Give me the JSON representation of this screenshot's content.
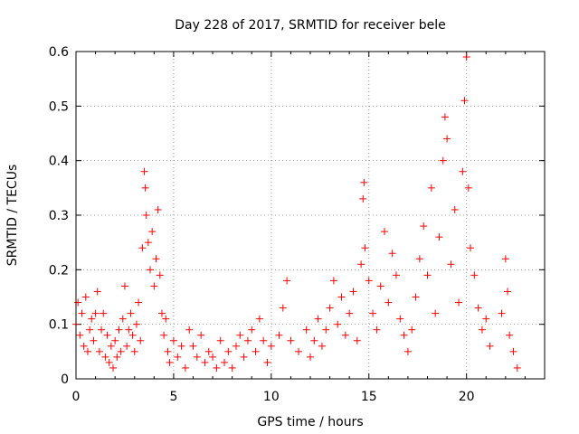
{
  "chart_data": {
    "type": "scatter",
    "title": "Day 228 of 2017, SRMTID for receiver bele",
    "xlabel": "GPS time / hours",
    "ylabel": "SRMTID / TECUs",
    "xlim": [
      0,
      24
    ],
    "ylim": [
      0,
      0.6
    ],
    "x_ticks": [
      "0",
      "5",
      "10",
      "15",
      "20"
    ],
    "y_ticks": [
      "0",
      "0.1",
      "0.2",
      "0.3",
      "0.4",
      "0.5",
      "0.6"
    ],
    "grid": true,
    "marker": "plus",
    "color": "#ff0000",
    "series": [
      {
        "name": "SRMTID",
        "points": [
          [
            0.0,
            0.1
          ],
          [
            0.1,
            0.14
          ],
          [
            0.2,
            0.08
          ],
          [
            0.3,
            0.12
          ],
          [
            0.4,
            0.06
          ],
          [
            0.5,
            0.15
          ],
          [
            0.6,
            0.05
          ],
          [
            0.7,
            0.09
          ],
          [
            0.8,
            0.11
          ],
          [
            0.9,
            0.07
          ],
          [
            1.0,
            0.12
          ],
          [
            1.1,
            0.16
          ],
          [
            1.2,
            0.05
          ],
          [
            1.3,
            0.09
          ],
          [
            1.4,
            0.12
          ],
          [
            1.5,
            0.04
          ],
          [
            1.6,
            0.08
          ],
          [
            1.7,
            0.03
          ],
          [
            1.8,
            0.06
          ],
          [
            1.9,
            0.02
          ],
          [
            2.0,
            0.07
          ],
          [
            2.1,
            0.04
          ],
          [
            2.2,
            0.09
          ],
          [
            2.3,
            0.05
          ],
          [
            2.4,
            0.11
          ],
          [
            2.5,
            0.17
          ],
          [
            2.6,
            0.06
          ],
          [
            2.7,
            0.09
          ],
          [
            2.8,
            0.12
          ],
          [
            2.9,
            0.08
          ],
          [
            3.0,
            0.05
          ],
          [
            3.1,
            0.1
          ],
          [
            3.2,
            0.14
          ],
          [
            3.3,
            0.07
          ],
          [
            3.4,
            0.24
          ],
          [
            3.5,
            0.38
          ],
          [
            3.55,
            0.35
          ],
          [
            3.6,
            0.3
          ],
          [
            3.7,
            0.25
          ],
          [
            3.8,
            0.2
          ],
          [
            3.9,
            0.27
          ],
          [
            4.0,
            0.17
          ],
          [
            4.1,
            0.22
          ],
          [
            4.2,
            0.31
          ],
          [
            4.3,
            0.19
          ],
          [
            4.4,
            0.12
          ],
          [
            4.5,
            0.08
          ],
          [
            4.6,
            0.11
          ],
          [
            4.7,
            0.05
          ],
          [
            4.8,
            0.03
          ],
          [
            5.0,
            0.07
          ],
          [
            5.2,
            0.04
          ],
          [
            5.4,
            0.06
          ],
          [
            5.6,
            0.02
          ],
          [
            5.8,
            0.09
          ],
          [
            6.0,
            0.06
          ],
          [
            6.2,
            0.04
          ],
          [
            6.4,
            0.08
          ],
          [
            6.6,
            0.03
          ],
          [
            6.8,
            0.05
          ],
          [
            7.0,
            0.04
          ],
          [
            7.2,
            0.02
          ],
          [
            7.4,
            0.07
          ],
          [
            7.6,
            0.03
          ],
          [
            7.8,
            0.05
          ],
          [
            8.0,
            0.02
          ],
          [
            8.2,
            0.06
          ],
          [
            8.4,
            0.08
          ],
          [
            8.6,
            0.04
          ],
          [
            8.8,
            0.07
          ],
          [
            9.0,
            0.09
          ],
          [
            9.2,
            0.05
          ],
          [
            9.4,
            0.11
          ],
          [
            9.6,
            0.07
          ],
          [
            9.8,
            0.03
          ],
          [
            10.0,
            0.06
          ],
          [
            10.4,
            0.08
          ],
          [
            10.6,
            0.13
          ],
          [
            10.8,
            0.18
          ],
          [
            11.0,
            0.07
          ],
          [
            11.4,
            0.05
          ],
          [
            11.8,
            0.09
          ],
          [
            12.0,
            0.04
          ],
          [
            12.2,
            0.07
          ],
          [
            12.4,
            0.11
          ],
          [
            12.6,
            0.06
          ],
          [
            12.8,
            0.09
          ],
          [
            13.0,
            0.13
          ],
          [
            13.2,
            0.18
          ],
          [
            13.4,
            0.1
          ],
          [
            13.6,
            0.15
          ],
          [
            13.8,
            0.08
          ],
          [
            14.0,
            0.12
          ],
          [
            14.2,
            0.16
          ],
          [
            14.4,
            0.07
          ],
          [
            14.6,
            0.21
          ],
          [
            14.7,
            0.33
          ],
          [
            14.75,
            0.36
          ],
          [
            14.8,
            0.24
          ],
          [
            15.0,
            0.18
          ],
          [
            15.2,
            0.12
          ],
          [
            15.4,
            0.09
          ],
          [
            15.6,
            0.17
          ],
          [
            15.8,
            0.27
          ],
          [
            16.0,
            0.14
          ],
          [
            16.2,
            0.23
          ],
          [
            16.4,
            0.19
          ],
          [
            16.6,
            0.11
          ],
          [
            16.8,
            0.08
          ],
          [
            17.0,
            0.05
          ],
          [
            17.2,
            0.09
          ],
          [
            17.4,
            0.15
          ],
          [
            17.6,
            0.22
          ],
          [
            17.8,
            0.28
          ],
          [
            18.0,
            0.19
          ],
          [
            18.2,
            0.35
          ],
          [
            18.4,
            0.12
          ],
          [
            18.6,
            0.26
          ],
          [
            18.8,
            0.4
          ],
          [
            18.9,
            0.48
          ],
          [
            19.0,
            0.44
          ],
          [
            19.2,
            0.21
          ],
          [
            19.4,
            0.31
          ],
          [
            19.6,
            0.14
          ],
          [
            19.8,
            0.38
          ],
          [
            19.9,
            0.51
          ],
          [
            20.0,
            0.59
          ],
          [
            20.1,
            0.35
          ],
          [
            20.2,
            0.24
          ],
          [
            20.4,
            0.19
          ],
          [
            20.6,
            0.13
          ],
          [
            20.8,
            0.09
          ],
          [
            21.0,
            0.11
          ],
          [
            21.2,
            0.06
          ],
          [
            21.8,
            0.12
          ],
          [
            22.0,
            0.22
          ],
          [
            22.1,
            0.16
          ],
          [
            22.2,
            0.08
          ],
          [
            22.4,
            0.05
          ],
          [
            22.6,
            0.02
          ]
        ]
      }
    ]
  }
}
